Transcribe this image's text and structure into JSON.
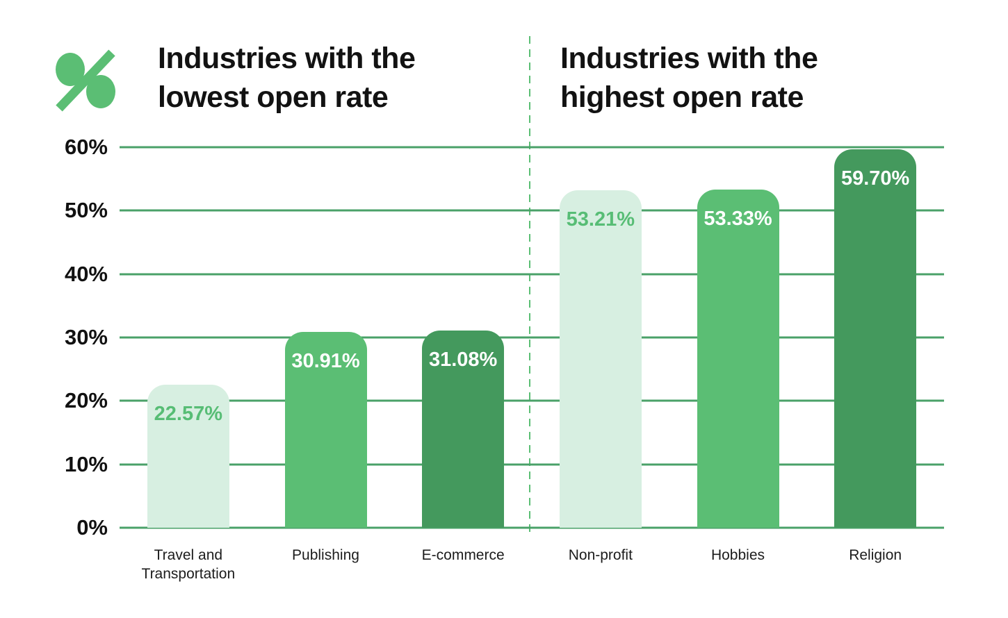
{
  "colors": {
    "accent_green": "#5bbe74",
    "gridline_green": "#4aa168",
    "title_text": "#121212",
    "axis_text": "#111111",
    "category_text": "#1c1c1c",
    "background": "#ffffff"
  },
  "icon": {
    "name": "percent-icon",
    "color": "#5bbe74"
  },
  "chart_data": {
    "type": "bar",
    "group_titles": [
      "Industries with the lowest open rate",
      "Industries with the highest open rate"
    ],
    "categories": [
      "Travel and Transportation",
      "Publishing",
      "E-commerce",
      "Non-profit",
      "Hobbies",
      "Religion"
    ],
    "values": [
      22.57,
      30.91,
      31.08,
      53.21,
      53.33,
      59.7
    ],
    "value_labels": [
      "22.57%",
      "30.91%",
      "31.08%",
      "53.21%",
      "53.33%",
      "59.70%"
    ],
    "bar_styles": [
      "light",
      "medium",
      "dark",
      "light",
      "medium",
      "dark"
    ],
    "palette": {
      "light": "#d7efe1",
      "medium": "#5bbe74",
      "dark": "#44995d"
    },
    "value_label_colors": {
      "light": "#57bd75",
      "medium": "#ffffff",
      "dark": "#ffffff"
    },
    "y_ticks": [
      "60%",
      "50%",
      "40%",
      "30%",
      "20%",
      "10%",
      "0%"
    ],
    "ylim": [
      0,
      60
    ],
    "grid": true,
    "legend": false,
    "divider": {
      "between": [
        "E-commerce",
        "Non-profit"
      ],
      "style": "dashed-vertical"
    }
  }
}
